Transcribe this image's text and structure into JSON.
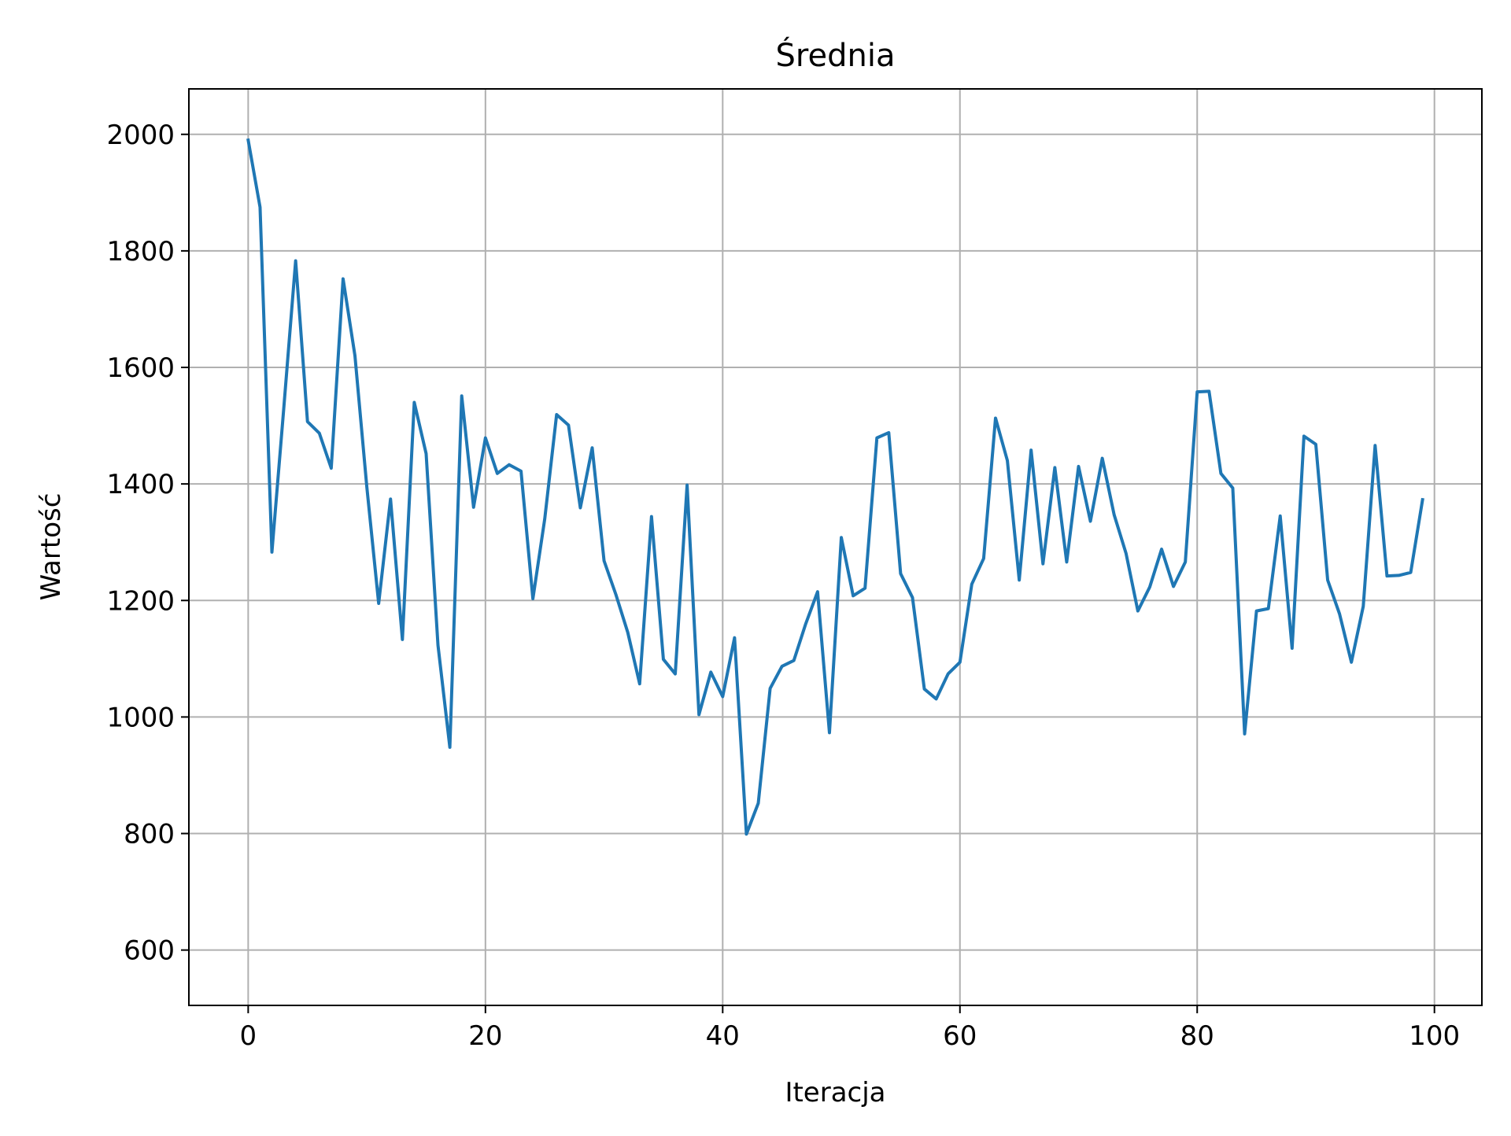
{
  "chart_data": {
    "type": "line",
    "title": "Średnia",
    "xlabel": "Iteracja",
    "ylabel": "Wartość",
    "xlim": [
      -5,
      104
    ],
    "ylim": [
      505,
      2078
    ],
    "xticks": [
      0,
      20,
      40,
      60,
      80,
      100
    ],
    "yticks": [
      600,
      800,
      1000,
      1200,
      1400,
      1600,
      1800,
      2000
    ],
    "grid": true,
    "line_color": "#1f77b4",
    "grid_color": "#b0b0b0",
    "series": [
      {
        "x": [
          0,
          1,
          2,
          3,
          4,
          5,
          6,
          7,
          8,
          9,
          10,
          11,
          12,
          13,
          14,
          15,
          16,
          17,
          18,
          19,
          20,
          21,
          22,
          23,
          24,
          25,
          26,
          27,
          28,
          29,
          30,
          31,
          32,
          33,
          34,
          35,
          36,
          37,
          38,
          39,
          40,
          41,
          42,
          43,
          44,
          45,
          46,
          47,
          48,
          49,
          50,
          51,
          52,
          53,
          54,
          55,
          56,
          57,
          58,
          59,
          60,
          61,
          62,
          63,
          64,
          65,
          66,
          67,
          68,
          69,
          70,
          71,
          72,
          73,
          74,
          75,
          76,
          77,
          78,
          79,
          80,
          81,
          82,
          83,
          84,
          85,
          86,
          87,
          88,
          89,
          90,
          91,
          92,
          93,
          94,
          95,
          96,
          97,
          98,
          99
        ],
        "values": [
          1990,
          1875,
          1283,
          1530,
          1783,
          1507,
          1487,
          1427,
          1752,
          1620,
          1395,
          1195,
          1374,
          1133,
          1540,
          1452,
          1123,
          948,
          1551,
          1360,
          1479,
          1418,
          1433,
          1422,
          1203,
          1340,
          1519,
          1501,
          1359,
          1462,
          1268,
          1210,
          1145,
          1057,
          1344,
          1099,
          1074,
          1398,
          1004,
          1077,
          1035,
          1136,
          799,
          852,
          1049,
          1087,
          1097,
          1160,
          1215,
          973,
          1308,
          1208,
          1221,
          1479,
          1488,
          1246,
          1205,
          1048,
          1031,
          1074,
          1094,
          1228,
          1272,
          1513,
          1440,
          1235,
          1458,
          1263,
          1428,
          1266,
          1430,
          1336,
          1444,
          1347,
          1281,
          1182,
          1223,
          1288,
          1224,
          1266,
          1558,
          1559,
          1418,
          1393,
          971,
          1182,
          1186,
          1345,
          1118,
          1482,
          1468,
          1235,
          1177,
          1094,
          1190,
          1466,
          1242,
          1243,
          1248,
          1373
        ]
      }
    ]
  }
}
